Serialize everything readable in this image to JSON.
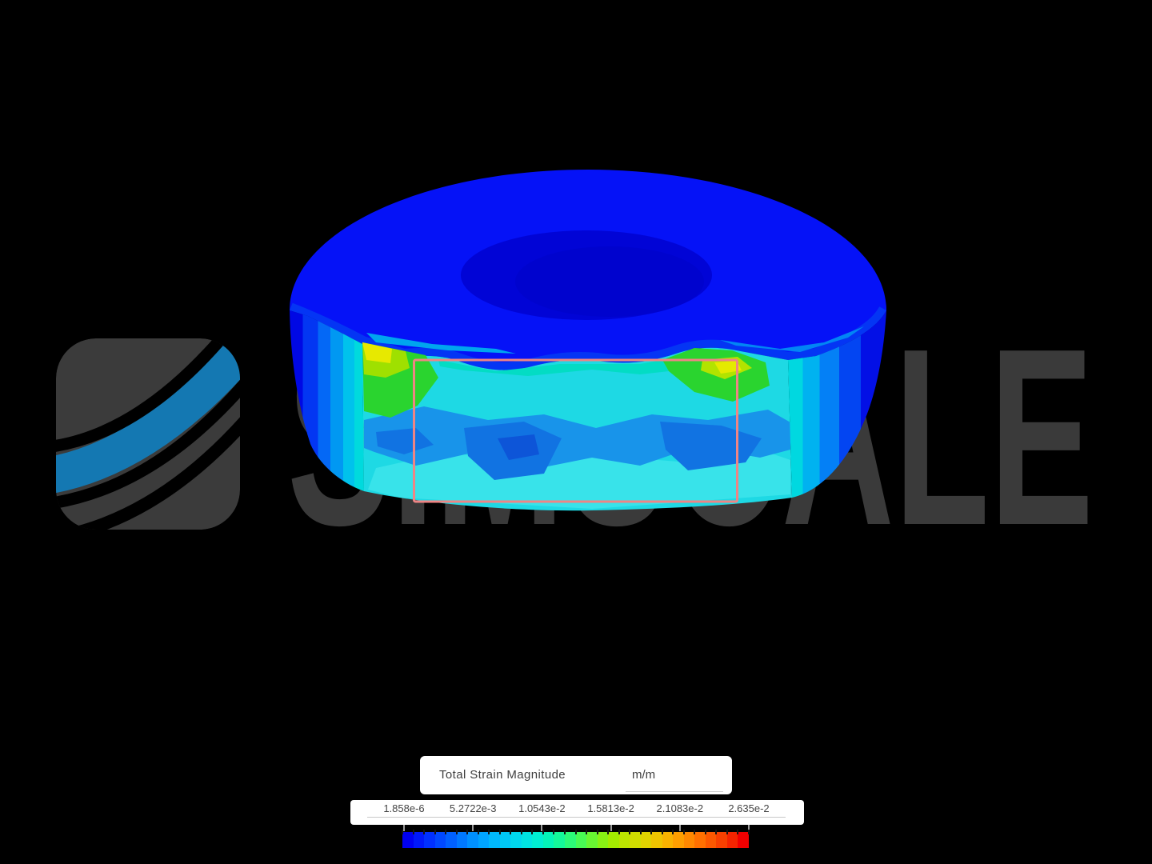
{
  "watermark": {
    "text": "SIMSCALE",
    "text_color": "#3a3a3a",
    "logo_gray": "#3b3b3b",
    "logo_blue": "#1478b2"
  },
  "legend": {
    "field_label": "Total Strain Magnitude",
    "unit_label": "m/m",
    "tick_labels": [
      "1.858e-6",
      "5.2722e-3",
      "1.0543e-2",
      "1.5813e-2",
      "2.1083e-2",
      "2.635e-2"
    ],
    "range_min": "1.858e-6",
    "range_max": "2.635e-2",
    "colorbar_colors": [
      "#0000f2",
      "#0018fa",
      "#0030ff",
      "#0048ff",
      "#0060ff",
      "#0078ff",
      "#0090ff",
      "#00a4ff",
      "#00b8fc",
      "#00c8f6",
      "#00d8ee",
      "#00e4e2",
      "#00eed2",
      "#04f4b8",
      "#14f89a",
      "#2cfa78",
      "#48fa54",
      "#68f632",
      "#88f214",
      "#a4ec00",
      "#bce400",
      "#d0dc00",
      "#e0d200",
      "#eec400",
      "#f8b200",
      "#fe9e00",
      "#ff8800",
      "#ff7000",
      "#fc5800",
      "#f84000",
      "#f42400",
      "#f00000"
    ]
  },
  "model": {
    "description_colors": {
      "top_face_blue": "#0512f7",
      "hole_navy": "#0104d6",
      "front_face_cyan": "#1ed9e4",
      "hotspot_green": "#2ad42f",
      "hotspot_yellow": "#e7e900",
      "mid_patch_blue": "#1894ea",
      "edge_band_blue": "#0435f4",
      "side_dark_blue": "#0008e4",
      "highlight_outline_pink": "#ee8585"
    }
  }
}
